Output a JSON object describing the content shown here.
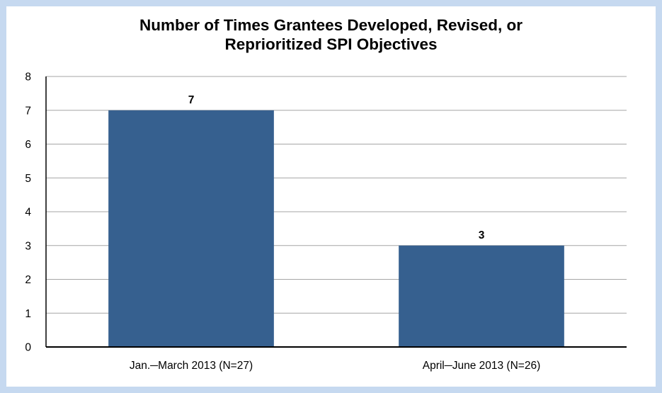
{
  "chart_data": {
    "type": "bar",
    "title_lines": [
      "Number of Times Grantees Developed, Revised, or",
      "Reprioritized SPI Objectives"
    ],
    "categories": [
      "Jan.─March 2013 (N=27)",
      "April─June 2013 (N=26)"
    ],
    "values": [
      7,
      3
    ],
    "data_labels": [
      "7",
      "3"
    ],
    "yticks": [
      "0",
      "1",
      "2",
      "3",
      "4",
      "5",
      "6",
      "7",
      "8"
    ],
    "ylim": [
      0,
      8
    ],
    "grid": true,
    "legend": "none",
    "colors": {
      "bar": "#36608f",
      "gridline": "#a6a6a6",
      "axis": "#000000",
      "border": "#c6d9f0"
    }
  }
}
